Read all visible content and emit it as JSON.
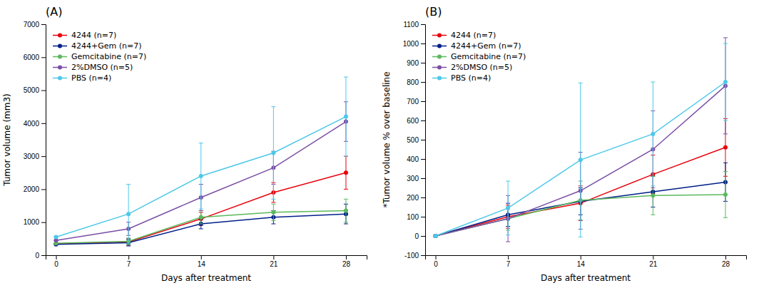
{
  "chart_data": [
    {
      "type": "line",
      "title": "(A)",
      "x_label": "Days after treatment",
      "y_label": "Tumor volume (mm3)",
      "x": [
        0,
        7,
        14,
        21,
        28
      ],
      "xlim": [
        -1,
        30
      ],
      "xticks": [
        0,
        7,
        14,
        21,
        28
      ],
      "ylim": [
        0,
        7000
      ],
      "yticks": [
        0,
        1000,
        2000,
        3000,
        4000,
        5000,
        6000,
        7000
      ],
      "legend": "upper left",
      "marker": "circle",
      "series": [
        {
          "name": "4244 (n=7)",
          "color": "#e8000b",
          "values": [
            350,
            400,
            1100,
            1900,
            2500
          ],
          "errors": [
            0,
            100,
            200,
            300,
            500
          ]
        },
        {
          "name": "4244+Gem (n=7)",
          "color": "#001f8a",
          "values": [
            330,
            380,
            950,
            1150,
            1250
          ],
          "errors": [
            0,
            100,
            150,
            200,
            300
          ]
        },
        {
          "name": "Gemcitabine (n=7)",
          "color": "#5cb85c",
          "values": [
            360,
            420,
            1150,
            1300,
            1350
          ],
          "errors": [
            0,
            100,
            200,
            250,
            350
          ]
        },
        {
          "name": "2%DMSO (n=5)",
          "color": "#7b4fa6",
          "values": [
            450,
            800,
            1750,
            2650,
            4050
          ],
          "errors": [
            0,
            200,
            400,
            500,
            600
          ]
        },
        {
          "name": "PBS (n=4)",
          "color": "#4dc8e8",
          "values": [
            550,
            1250,
            2400,
            3100,
            4200
          ],
          "errors": [
            0,
            900,
            1000,
            1400,
            1200
          ]
        }
      ]
    },
    {
      "type": "line",
      "title": "(B)",
      "x_label": "Days after treatment",
      "y_label": "*Tumor volume % over baseline",
      "x": [
        0,
        7,
        14,
        21,
        28
      ],
      "xlim": [
        -1,
        30
      ],
      "xticks": [
        0,
        7,
        14,
        21,
        28
      ],
      "ylim": [
        -100,
        1100
      ],
      "yticks": [
        -100,
        0,
        100,
        200,
        300,
        400,
        500,
        600,
        700,
        800,
        900,
        1000,
        1100
      ],
      "legend": "upper left",
      "marker": "circle",
      "series": [
        {
          "name": "4244 (n=7)",
          "color": "#e8000b",
          "values": [
            0,
            100,
            170,
            320,
            460
          ],
          "errors": [
            0,
            60,
            90,
            100,
            150
          ]
        },
        {
          "name": "4244+Gem (n=7)",
          "color": "#001f8a",
          "values": [
            0,
            110,
            180,
            230,
            280
          ],
          "errors": [
            0,
            60,
            70,
            80,
            100
          ]
        },
        {
          "name": "Gemcitabine (n=7)",
          "color": "#5cb85c",
          "values": [
            0,
            90,
            185,
            210,
            215
          ],
          "errors": [
            0,
            60,
            100,
            100,
            120
          ]
        },
        {
          "name": "2%DMSO (n=5)",
          "color": "#7b4fa6",
          "values": [
            0,
            90,
            235,
            450,
            780
          ],
          "errors": [
            0,
            120,
            200,
            200,
            250
          ]
        },
        {
          "name": "PBS (n=4)",
          "color": "#4dc8e8",
          "values": [
            0,
            145,
            395,
            530,
            800
          ],
          "errors": [
            0,
            140,
            400,
            270,
            200
          ]
        }
      ]
    }
  ]
}
